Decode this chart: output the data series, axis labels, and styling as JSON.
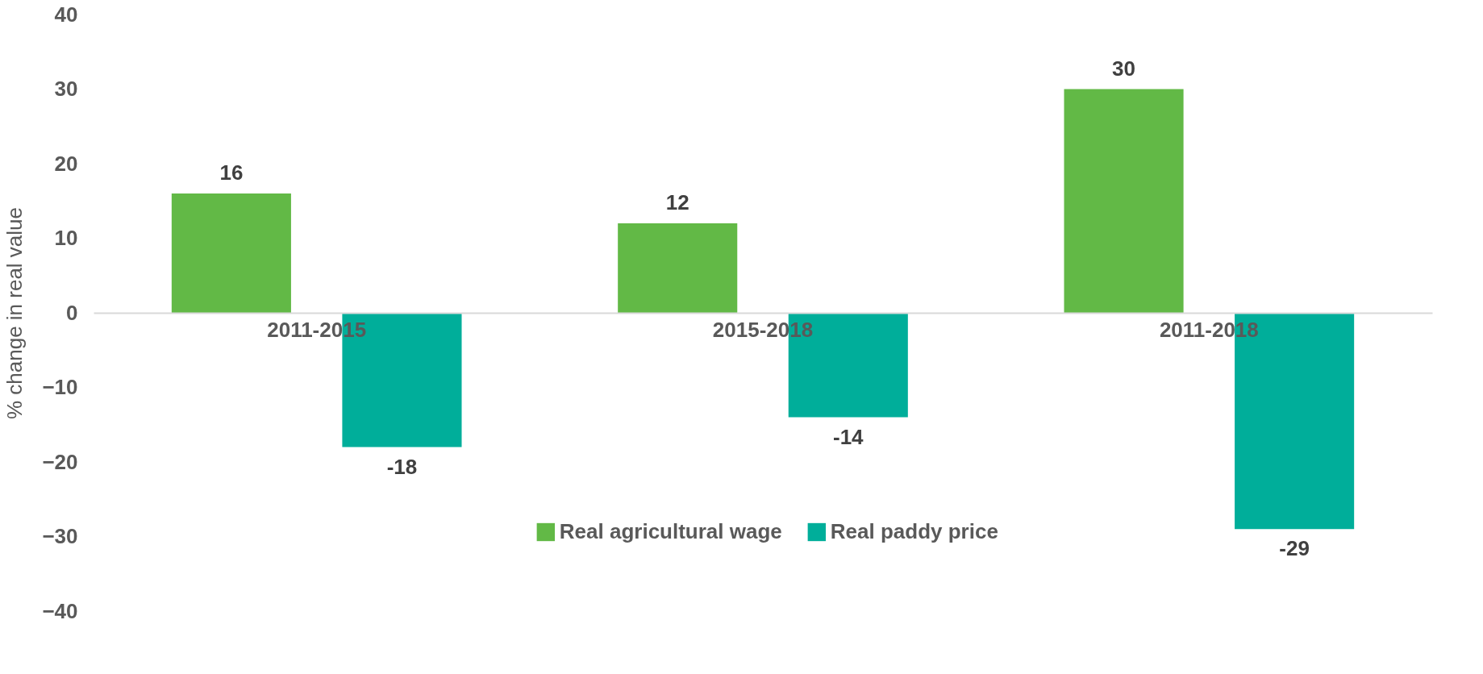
{
  "chart_data": {
    "type": "bar",
    "ylabel": "% change in real value",
    "categories": [
      "2011-2015",
      "2015-2018",
      "2011-2018"
    ],
    "series": [
      {
        "name": "Real agricultural wage",
        "color": "#62b946",
        "values": [
          16,
          12,
          30
        ]
      },
      {
        "name": "Real paddy price",
        "color": "#00ae9a",
        "values": [
          -18,
          -14,
          -29
        ]
      }
    ],
    "ylim": [
      -40,
      40
    ],
    "yticks": [
      -40,
      -30,
      -20,
      -10,
      0,
      10,
      20,
      30,
      40
    ],
    "data_labels": true,
    "grid": false,
    "legend": "bottom"
  }
}
